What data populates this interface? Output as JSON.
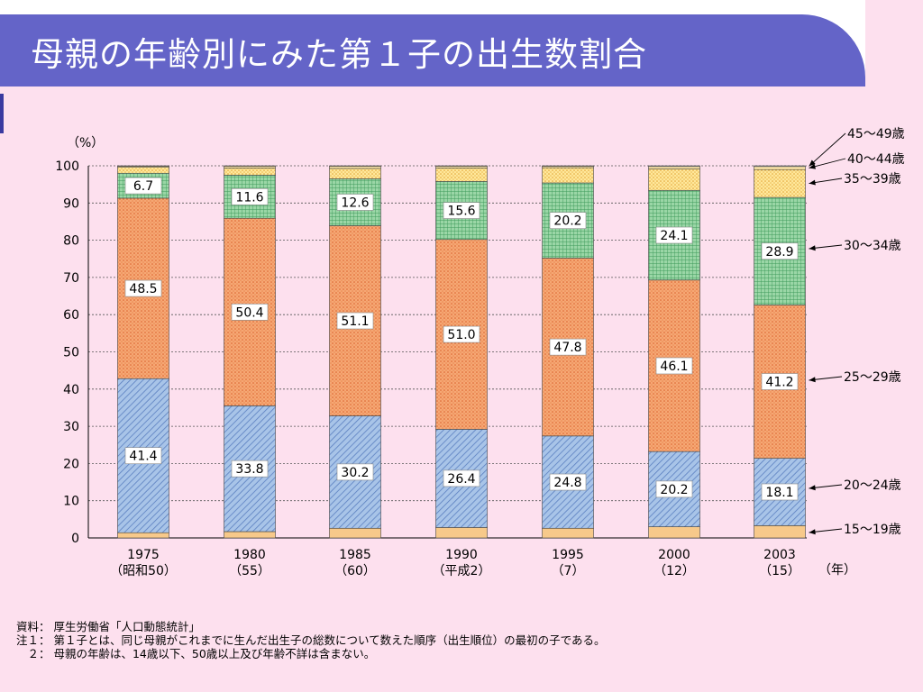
{
  "page": {
    "title": "母親の年齢別にみた第１子の出生数割合"
  },
  "notes": {
    "source": "資料： 厚生労働省「人口動態統計」",
    "note1": "注１： 第１子とは、同じ母親がこれまでに生んだ出生子の総数について数えた順序（出生順位）の最初の子である。",
    "note2": "　２： 母親の年齢は、14歳以下、50歳以上及び年齢不詳は含まない。"
  },
  "chart_data": {
    "type": "bar",
    "stacked": true,
    "ylabel": "（%）",
    "xunit": "（年）",
    "ylim": [
      0,
      100
    ],
    "yticks": [
      0,
      10,
      20,
      30,
      40,
      50,
      60,
      70,
      80,
      90,
      100
    ],
    "grid": true,
    "categories": [
      "1975",
      "1980",
      "1985",
      "1990",
      "1995",
      "2000",
      "2003"
    ],
    "category_sublabels": [
      "（昭和50）",
      "（55）",
      "（60）",
      "（平成2）",
      "（7）",
      "（12）",
      "（15）"
    ],
    "series": [
      {
        "name": "15〜19歳",
        "color": "#f7c98a",
        "pattern": "solid",
        "values": [
          1.4,
          1.7,
          2.6,
          2.8,
          2.6,
          3.0,
          3.3
        ],
        "show_labels": false
      },
      {
        "name": "20〜24歳",
        "color": "#a8c4e8",
        "pattern": "hatch",
        "values": [
          41.4,
          33.8,
          30.2,
          26.4,
          24.8,
          20.2,
          18.1
        ],
        "show_labels": true
      },
      {
        "name": "25〜29歳",
        "color": "#f4a070",
        "pattern": "dots",
        "values": [
          48.5,
          50.4,
          51.1,
          51.0,
          47.8,
          46.1,
          41.2
        ],
        "show_labels": true
      },
      {
        "name": "30〜34歳",
        "color": "#92d0a0",
        "pattern": "grid",
        "values": [
          6.7,
          11.6,
          12.6,
          15.6,
          20.2,
          24.1,
          28.9
        ],
        "show_labels": true
      },
      {
        "name": "35〜39歳",
        "color": "#ffe08a",
        "pattern": "dots2",
        "values": [
          1.6,
          1.9,
          2.8,
          3.6,
          4.1,
          5.8,
          7.5
        ],
        "show_labels": false
      },
      {
        "name": "40〜44歳",
        "color": "#ffe7a8",
        "pattern": "solid",
        "values": [
          0.3,
          0.5,
          0.6,
          0.5,
          0.4,
          0.6,
          0.8
        ],
        "show_labels": false
      },
      {
        "name": "45〜49歳",
        "color": "#ffffff",
        "pattern": "solid",
        "values": [
          0.1,
          0.1,
          0.1,
          0.1,
          0.1,
          0.2,
          0.2
        ],
        "show_labels": false
      }
    ],
    "legend_arrows_for_category": "2003"
  }
}
